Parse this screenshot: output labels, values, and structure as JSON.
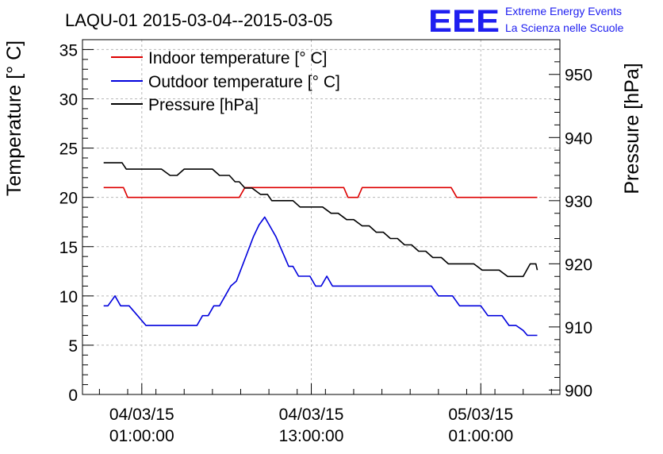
{
  "chart_data": {
    "type": "line",
    "title": "LAQU-01 2015-03-04--2015-03-05",
    "ylabel": "Temperature [° C]",
    "y2label": "Pressure [hPa]",
    "ylim": [
      0,
      36
    ],
    "y2lim": [
      899.3,
      955.5
    ],
    "yticks": [
      "0",
      "5",
      "10",
      "15",
      "20",
      "25",
      "30",
      "35"
    ],
    "y2ticks": [
      "900",
      "910",
      "920",
      "930",
      "940",
      "950"
    ],
    "xlim_hours": [
      -3.2,
      30.6
    ],
    "xticks": [
      {
        "date": "04/03/15",
        "time": "01:00:00",
        "hour": 1
      },
      {
        "date": "04/03/15",
        "time": "13:00:00",
        "hour": 13
      },
      {
        "date": "05/03/15",
        "time": "01:00:00",
        "hour": 25
      }
    ],
    "grid": true,
    "legend_position": "top-left",
    "series": [
      {
        "name": "Indoor temperature [° C]",
        "color": "#dd0000",
        "axis": "left",
        "x": [
          -1.7,
          -0.3,
          0.0,
          7.9,
          8.3,
          15.3,
          15.6,
          16.3,
          16.6,
          22.9,
          23.3,
          29.0
        ],
        "y": [
          21,
          21,
          20,
          20,
          21,
          21,
          20,
          20,
          21,
          21,
          20,
          20
        ]
      },
      {
        "name": "Outdoor temperature [° C]",
        "color": "#0000dd",
        "axis": "left",
        "x": [
          -1.7,
          -1.4,
          -0.9,
          -0.5,
          0.1,
          0.7,
          1.3,
          1.9,
          2.5,
          3.1,
          3.7,
          4.3,
          4.9,
          5.3,
          5.7,
          6.1,
          6.5,
          6.9,
          7.3,
          7.7,
          8.1,
          8.5,
          8.9,
          9.3,
          9.7,
          10.1,
          10.5,
          10.8,
          11.1,
          11.4,
          11.7,
          12.1,
          12.5,
          12.9,
          13.3,
          13.7,
          14.1,
          14.5,
          14.9,
          15.3,
          15.7,
          16.1,
          16.5,
          17.0,
          17.5,
          18.0,
          18.5,
          19.0,
          19.5,
          20.0,
          20.5,
          21.0,
          21.5,
          22.0,
          22.5,
          23.0,
          23.5,
          24.0,
          24.5,
          25.0,
          25.5,
          26.0,
          26.5,
          27.0,
          27.5,
          28.0,
          28.3,
          28.6,
          29.0
        ],
        "y": [
          9,
          9,
          10,
          9,
          9,
          8,
          7,
          7,
          7,
          7,
          7,
          7,
          7,
          8,
          8,
          9,
          9,
          10,
          11,
          11.5,
          13,
          14.5,
          16,
          17.2,
          18,
          17,
          16,
          15,
          14,
          13,
          13,
          12,
          12,
          12,
          11,
          11,
          12,
          11,
          11,
          11,
          11,
          11,
          11,
          11,
          11,
          11,
          11,
          11,
          11,
          11,
          11,
          11,
          11,
          10,
          10,
          10,
          9,
          9,
          9,
          9,
          8,
          8,
          8,
          7,
          7,
          6.5,
          6,
          6,
          6
        ]
      },
      {
        "name": "Pressure [hPa]",
        "color": "#000000",
        "axis": "right",
        "x": [
          -1.7,
          -0.4,
          -0.1,
          2.4,
          3.0,
          3.5,
          4.0,
          6.0,
          6.5,
          7.2,
          7.6,
          7.9,
          8.3,
          8.8,
          9.4,
          9.9,
          10.2,
          10.7,
          11.2,
          11.7,
          12.2,
          12.8,
          13.3,
          13.8,
          14.4,
          14.9,
          15.5,
          16.0,
          16.6,
          17.1,
          17.6,
          18.1,
          18.6,
          19.1,
          19.6,
          20.1,
          20.6,
          21.1,
          21.6,
          22.2,
          22.7,
          23.3,
          23.9,
          24.5,
          25.1,
          25.7,
          26.3,
          26.9,
          27.5,
          28.0,
          28.5,
          28.9,
          29.0
        ],
        "y": [
          936,
          936,
          935,
          935,
          934,
          934,
          935,
          935,
          934,
          934,
          933,
          933,
          932,
          932,
          931,
          931,
          930,
          930,
          930,
          930,
          929,
          929,
          929,
          929,
          928,
          928,
          927,
          927,
          926,
          926,
          925,
          925,
          924,
          924,
          923,
          923,
          922,
          922,
          921,
          921,
          920,
          920,
          920,
          920,
          919,
          919,
          919,
          918,
          918,
          918,
          920,
          920,
          919
        ]
      }
    ]
  },
  "logo": {
    "mark": "EEE",
    "line1": "Extreme Energy Events",
    "line2": "La Scienza nelle Scuole"
  }
}
